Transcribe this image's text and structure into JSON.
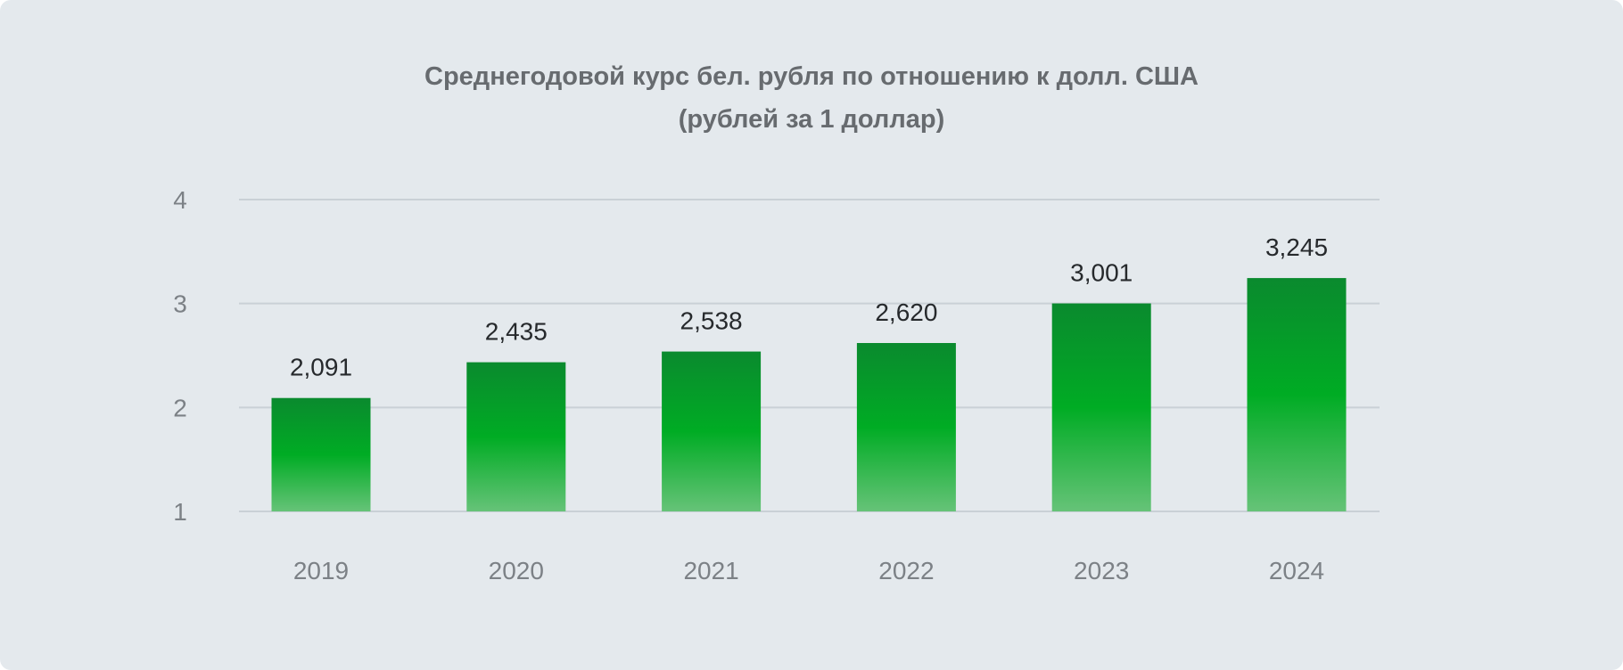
{
  "chart_data": {
    "type": "bar",
    "title_lines": [
      "Среднегодовой курс бел. рубля по отношению к долл. США",
      "(рублей за 1 доллар)"
    ],
    "xlabel": "",
    "ylabel": "",
    "categories": [
      "2019",
      "2020",
      "2021",
      "2022",
      "2023",
      "2024"
    ],
    "values": [
      2.091,
      2.435,
      2.538,
      2.62,
      3.001,
      3.245
    ],
    "value_labels": [
      "2,091",
      "2,435",
      "2,538",
      "2,620",
      "3,001",
      "3,245"
    ],
    "y_ticks": [
      1,
      2,
      3,
      4
    ],
    "y_tick_labels": [
      "1",
      "2",
      "3",
      "4"
    ],
    "ylim": [
      1,
      4
    ],
    "grid": true,
    "legend": "none",
    "colors": {
      "bar_top": "#0a8a2e",
      "bar_mid": "#00ac24",
      "bar_bottom": "#66c378",
      "grid": "#c9d0d6",
      "background": "#e4e9ed",
      "title": "#676b6f"
    }
  }
}
